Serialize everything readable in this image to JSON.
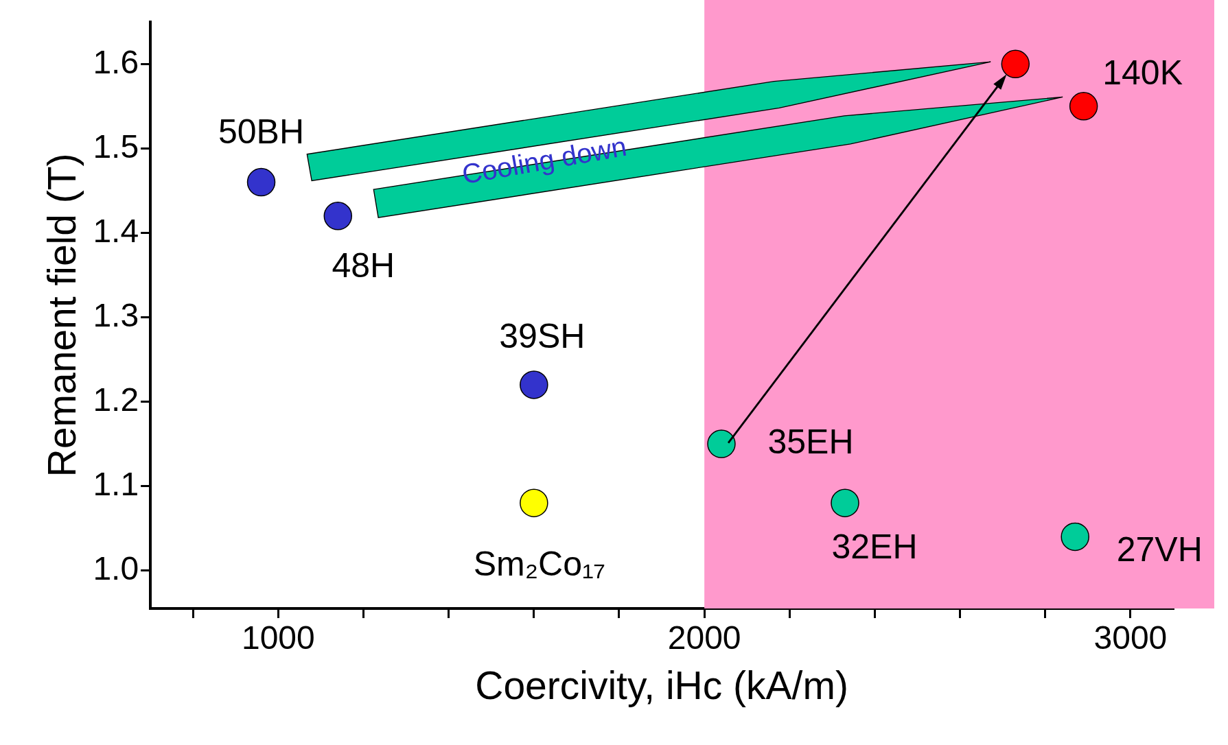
{
  "chart_data": {
    "type": "scatter",
    "xlabel": "Coercivity, iHc (kA/m)",
    "ylabel": "Remanent field (T)",
    "series": [
      {
        "color": "#3333cc",
        "x": [
          960,
          1140,
          1600
        ],
        "values": [
          1.46,
          1.42,
          1.22
        ]
      },
      {
        "color": "#ffff00",
        "x": [
          1600
        ],
        "values": [
          1.08
        ]
      },
      {
        "color": "#00cc99",
        "x": [
          2040,
          2330,
          2870
        ],
        "values": [
          1.15,
          1.08,
          1.04
        ]
      },
      {
        "color": "#ff0000",
        "x": [
          2730,
          2890
        ],
        "values": [
          1.6,
          1.55
        ]
      }
    ],
    "xlim": [
      700,
      3100
    ],
    "ylim": [
      0.955,
      1.65
    ],
    "xticks": [
      {
        "value": 800,
        "label": null
      },
      1000,
      {
        "value": 1200,
        "label": null
      },
      {
        "value": 1400,
        "label": null
      },
      {
        "value": 1600,
        "label": null
      },
      {
        "value": 1800,
        "label": null
      },
      2000,
      {
        "value": 2200,
        "label": null
      },
      {
        "value": 2400,
        "label": null
      },
      {
        "value": 2600,
        "label": null
      },
      {
        "value": 2800,
        "label": null
      },
      3000
    ],
    "yticks": [
      {
        "value": 1,
        "label": "1.0"
      },
      1.1,
      1.2,
      1.3,
      1.4,
      1.5,
      1.6
    ],
    "bands": [
      {
        "axis": "x",
        "from": 2000,
        "to": 3100,
        "color": "#ff99cc"
      }
    ],
    "annotations": [
      {
        "text": "50BH",
        "x": 960,
        "y": 1.46
      },
      {
        "text": "48H",
        "x": 1140,
        "y": 1.42
      },
      {
        "text": "39SH",
        "x": 1600,
        "y": 1.22
      },
      {
        "text": "Sm₂Co₁₇",
        "x": 1600,
        "y": 1.08
      },
      {
        "text": "35EH",
        "x": 2040,
        "y": 1.15
      },
      {
        "text": "32EH",
        "x": 2330,
        "y": 1.08
      },
      {
        "text": "27VH",
        "x": 2870,
        "y": 1.04
      },
      {
        "text": "140K",
        "x": 2890,
        "y": 1.55
      },
      "Cooling down"
    ],
    "grid": false,
    "legend": false,
    "marker": "circle"
  }
}
